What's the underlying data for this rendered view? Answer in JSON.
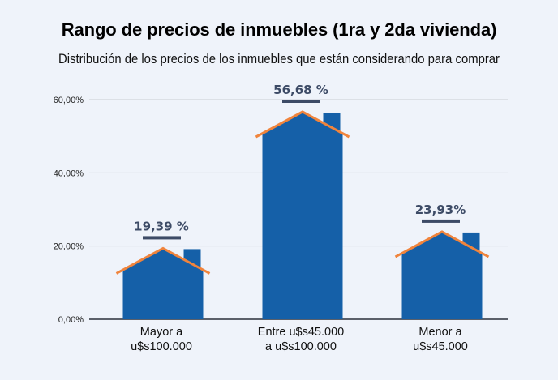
{
  "chart_data": {
    "type": "bar",
    "title": "Rango de precios de inmuebles (1ra y 2da vivienda)",
    "subtitle": "Distribución de los precios de los inmuebles que están considerando para comprar",
    "xlabel": "",
    "ylabel": "",
    "ylim": [
      0,
      60
    ],
    "yticks": [
      0,
      20,
      40,
      60
    ],
    "ytick_labels": [
      "0,00%",
      "20,00%",
      "40,00%",
      "60,00%"
    ],
    "grid": true,
    "categories": [
      [
        "Mayor a",
        "u$s100.000"
      ],
      [
        "Entre u$s45.000",
        "a u$s100.000"
      ],
      [
        "Menor a",
        "u$s45.000"
      ]
    ],
    "values": [
      19.39,
      56.68,
      23.93
    ],
    "data_labels": [
      "19,39 %",
      "56,68 %",
      "23,93%"
    ],
    "bar_style": "house",
    "colors": {
      "bar": "#1560a8",
      "roof": "#f0843c",
      "label": "#3d4b66",
      "grid": "#c9ccd3",
      "axis": "#2a2f3a",
      "background": "#eff3fa"
    }
  }
}
